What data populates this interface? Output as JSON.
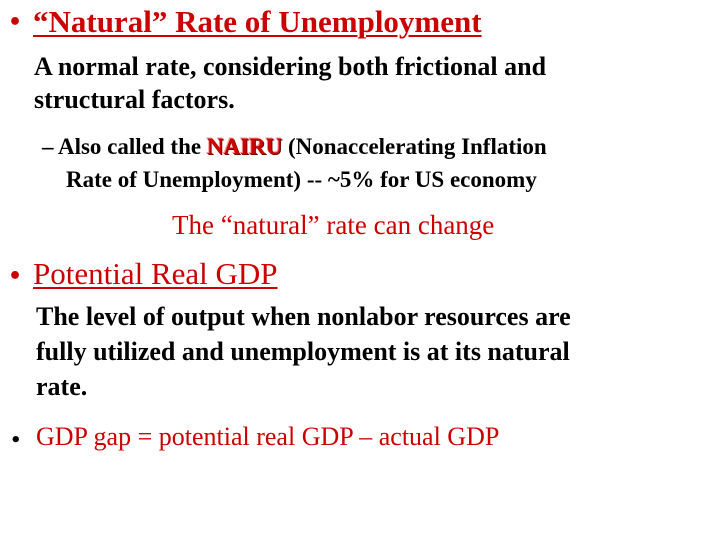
{
  "bullets": {
    "natural_rate": {
      "heading": "“Natural” Rate of Unemployment",
      "definition_line1": "A normal rate, considering both frictional and",
      "definition_line2": "structural factors.",
      "sub": {
        "dash": "–",
        "prefix": "Also called the ",
        "acronym": "NAIRU",
        "rest_line1": " (Nonaccelerating Inflation",
        "line2": "Rate of Unemployment) -- ~5% for US economy"
      },
      "note": "The “natural” rate can change"
    },
    "potential_gdp": {
      "heading": "Potential Real GDP",
      "definition_line1": "The level of output when nonlabor resources are",
      "definition_line2": "fully utilized and unemployment is at its natural",
      "definition_line3": "rate."
    },
    "gdp_gap": {
      "text": "GDP gap = potential real GDP – actual GDP"
    }
  },
  "colors": {
    "accent": "#cc0000",
    "text": "#000000",
    "background": "#ffffff"
  }
}
